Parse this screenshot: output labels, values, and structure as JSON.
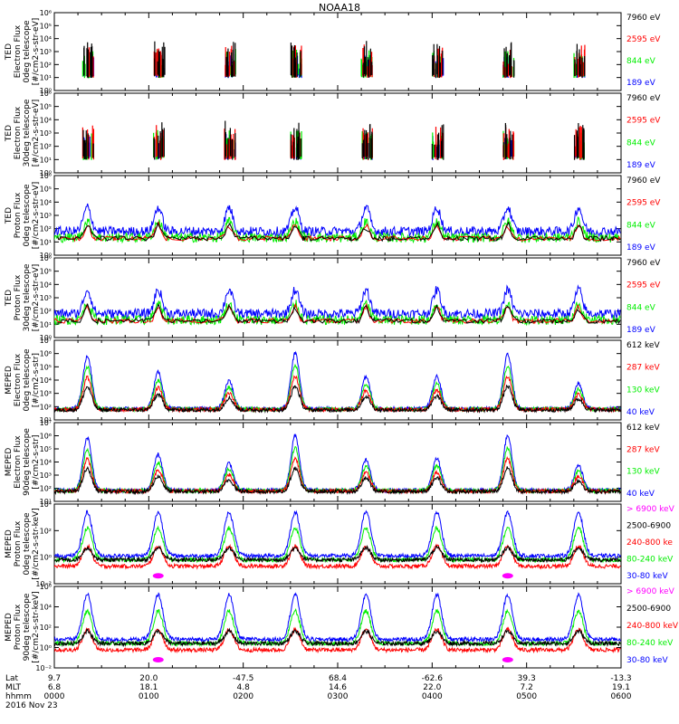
{
  "title": "NOAA18",
  "date_label": "2016 Nov 23",
  "row_labels": [
    "Lat",
    "MLT",
    "hhmm"
  ],
  "x_columns": [
    {
      "lat": "9.7",
      "mlt": "6.8",
      "hhmm": "0000"
    },
    {
      "lat": "20.0",
      "mlt": "18.1",
      "hhmm": "0100"
    },
    {
      "lat": "-47.5",
      "mlt": "4.8",
      "hhmm": "0200"
    },
    {
      "lat": "68.4",
      "mlt": "14.6",
      "hhmm": "0300"
    },
    {
      "lat": "-62.6",
      "mlt": "22.0",
      "hhmm": "0400"
    },
    {
      "lat": "39.3",
      "mlt": "7.2",
      "hhmm": "0500"
    },
    {
      "lat": "-13.3",
      "mlt": "19.1",
      "hhmm": "0600"
    }
  ],
  "colors": {
    "black": "#000000",
    "red": "#ff0000",
    "green": "#00ee00",
    "blue": "#0000ff",
    "magenta": "#ff00ff"
  },
  "chart_data": [
    {
      "type": "line",
      "title": "",
      "ylabel": [
        "TED",
        "Electron Flux",
        "0deg telescope",
        "[#/cm2-s-str-eV]"
      ],
      "y_scale": "log",
      "yticks": [
        "10⁰",
        "10¹",
        "10²",
        "10³",
        "10⁴",
        "10⁵",
        "10⁶"
      ],
      "x_range_hours": [
        0,
        6
      ],
      "series": [
        {
          "name": "7960 eV",
          "color": "black"
        },
        {
          "name": "2595 eV",
          "color": "red"
        },
        {
          "name": "844 eV",
          "color": "green"
        },
        {
          "name": "189 eV",
          "color": "blue"
        }
      ]
    },
    {
      "type": "line",
      "title": "",
      "ylabel": [
        "TED",
        "Electron Flux",
        "30deg telescope",
        "[#/cm2-s-str-eV]"
      ],
      "y_scale": "log",
      "yticks": [
        "10⁰",
        "10¹",
        "10²",
        "10³",
        "10⁴",
        "10⁵",
        "10⁶"
      ],
      "x_range_hours": [
        0,
        6
      ],
      "series": [
        {
          "name": "7960 eV",
          "color": "black"
        },
        {
          "name": "2595 eV",
          "color": "red"
        },
        {
          "name": "844 eV",
          "color": "green"
        },
        {
          "name": "189 eV",
          "color": "blue"
        }
      ]
    },
    {
      "type": "line",
      "title": "",
      "ylabel": [
        "TED",
        "Proton Flux",
        "0deg telescope",
        "[#/cm2-s-str-eV]"
      ],
      "y_scale": "log",
      "yticks": [
        "10⁰",
        "10¹",
        "10²",
        "10³",
        "10⁴",
        "10⁵",
        "10⁶"
      ],
      "x_range_hours": [
        0,
        6
      ],
      "series": [
        {
          "name": "7960 eV",
          "color": "black"
        },
        {
          "name": "2595 eV",
          "color": "red"
        },
        {
          "name": "844 eV",
          "color": "green"
        },
        {
          "name": "189 eV",
          "color": "blue"
        }
      ]
    },
    {
      "type": "line",
      "title": "",
      "ylabel": [
        "TED",
        "Proton Flux",
        "30deg telescope",
        "[#/cm2-s-str-eV]"
      ],
      "y_scale": "log",
      "yticks": [
        "10⁰",
        "10¹",
        "10²",
        "10³",
        "10⁴",
        "10⁵",
        "10⁶"
      ],
      "x_range_hours": [
        0,
        6
      ],
      "series": [
        {
          "name": "7960 eV",
          "color": "black"
        },
        {
          "name": "2595 eV",
          "color": "red"
        },
        {
          "name": "844 eV",
          "color": "green"
        },
        {
          "name": "189 eV",
          "color": "blue"
        }
      ]
    },
    {
      "type": "line",
      "title": "",
      "ylabel": [
        "MEPED",
        "Electron Flux",
        "0deg telescope",
        "[#/cm2-s-str]"
      ],
      "y_scale": "log",
      "yticks": [
        "10¹",
        "10²",
        "10³",
        "10⁴",
        "10⁵",
        "10⁶",
        "10⁷"
      ],
      "x_range_hours": [
        0,
        6
      ],
      "series": [
        {
          "name": "612 keV",
          "color": "black"
        },
        {
          "name": "287 keV",
          "color": "red"
        },
        {
          "name": "130 keV",
          "color": "green"
        },
        {
          "name": "40 keV",
          "color": "blue"
        }
      ]
    },
    {
      "type": "line",
      "title": "",
      "ylabel": [
        "MEPED",
        "Electron Flux",
        "90deg telescope",
        "[#/cm2-s-str]"
      ],
      "y_scale": "log",
      "yticks": [
        "10¹",
        "10²",
        "10³",
        "10⁴",
        "10⁵",
        "10⁶",
        "10⁷"
      ],
      "x_range_hours": [
        0,
        6
      ],
      "series": [
        {
          "name": "612 keV",
          "color": "black"
        },
        {
          "name": "287 keV",
          "color": "red"
        },
        {
          "name": "130 keV",
          "color": "green"
        },
        {
          "name": "40 keV",
          "color": "blue"
        }
      ]
    },
    {
      "type": "line",
      "title": "",
      "ylabel": [
        "MEPED",
        "Proton Flux",
        "0deg telescope",
        "[#/cm2-s-str-keV]"
      ],
      "y_scale": "log",
      "yticks": [
        "10⁻²",
        "10⁰",
        "10²",
        "10⁴"
      ],
      "x_range_hours": [
        0,
        6
      ],
      "series": [
        {
          "name": "> 6900 keV",
          "color": "magenta"
        },
        {
          "name": "2500-6900",
          "color": "black"
        },
        {
          "name": "240-800 ke",
          "color": "red"
        },
        {
          "name": "80-240 keV",
          "color": "green"
        },
        {
          "name": "30-80 keV",
          "color": "blue"
        }
      ]
    },
    {
      "type": "line",
      "title": "",
      "ylabel": [
        "MEPED",
        "Proton Flux",
        "90deg telescope",
        "[#/cm2-s-str-keV]"
      ],
      "y_scale": "log",
      "yticks": [
        "10⁻²",
        "10⁰",
        "10²",
        "10⁴",
        "10⁶"
      ],
      "x_range_hours": [
        0,
        6
      ],
      "series": [
        {
          "name": "> 6900 keV",
          "color": "magenta"
        },
        {
          "name": "2500-6900",
          "color": "black"
        },
        {
          "name": "240-800 keV",
          "color": "red"
        },
        {
          "name": "80-240 keV",
          "color": "green"
        },
        {
          "name": "30-80 keV",
          "color": "blue"
        }
      ]
    }
  ]
}
